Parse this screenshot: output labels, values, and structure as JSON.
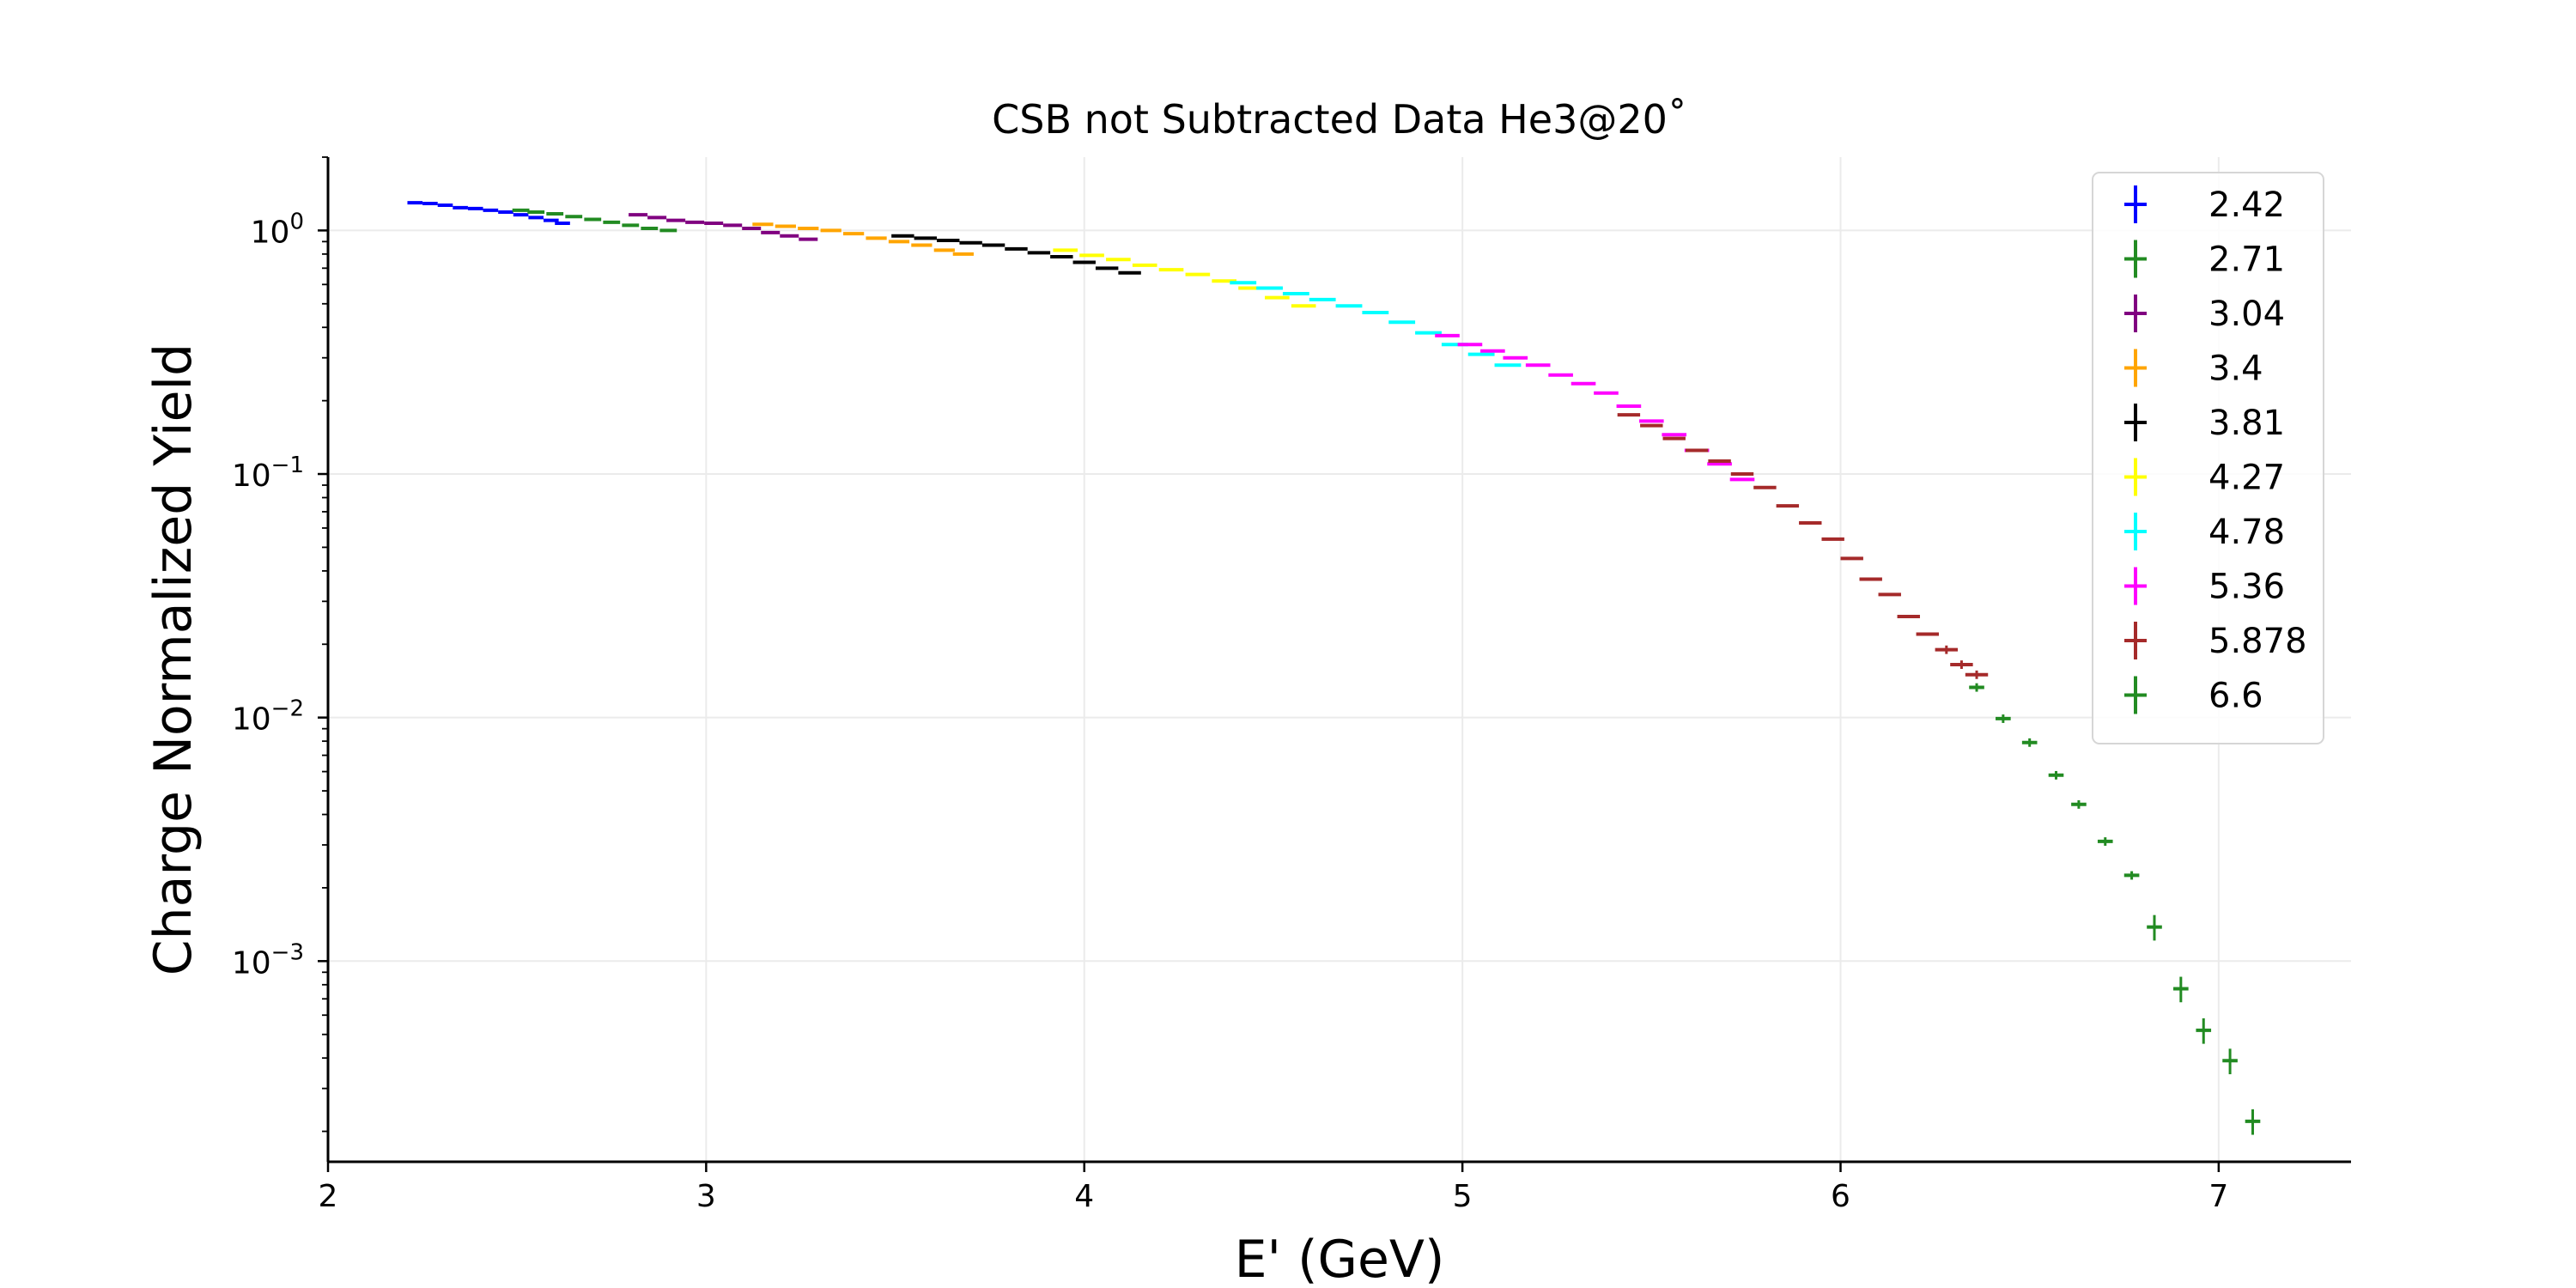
{
  "chart_data": {
    "type": "scatter",
    "title": "CSB not Subtracted Data He3@20˚",
    "xlabel": "E' (GeV)",
    "ylabel": "Charge Normalized Yield",
    "xlim": [
      2.0,
      7.35
    ],
    "ylim": [
      0.00015,
      2.0
    ],
    "yscale": "log",
    "grid": true,
    "legend_position": "top-right",
    "x_ticks": [
      {
        "value": 2,
        "label": "2"
      },
      {
        "value": 3,
        "label": "3"
      },
      {
        "value": 4,
        "label": "4"
      },
      {
        "value": 5,
        "label": "5"
      },
      {
        "value": 6,
        "label": "6"
      },
      {
        "value": 7,
        "label": "7"
      }
    ],
    "y_ticks": [
      {
        "value": 1.0,
        "label": "10",
        "exp": "0"
      },
      {
        "value": 0.1,
        "label": "10",
        "exp": "−1"
      },
      {
        "value": 0.01,
        "label": "10",
        "exp": "−2"
      },
      {
        "value": 0.001,
        "label": "10",
        "exp": "−3"
      }
    ],
    "series": [
      {
        "name": "2.42",
        "color": "#0000ff",
        "bin_width": 0.04,
        "points": [
          [
            2.23,
            1.3
          ],
          [
            2.27,
            1.29
          ],
          [
            2.31,
            1.27
          ],
          [
            2.35,
            1.24
          ],
          [
            2.39,
            1.23
          ],
          [
            2.43,
            1.21
          ],
          [
            2.47,
            1.19
          ],
          [
            2.51,
            1.16
          ],
          [
            2.55,
            1.13
          ],
          [
            2.59,
            1.1
          ],
          [
            2.62,
            1.07
          ]
        ]
      },
      {
        "name": "2.71",
        "color": "#228b22",
        "bin_width": 0.045,
        "points": [
          [
            2.51,
            1.21
          ],
          [
            2.55,
            1.19
          ],
          [
            2.6,
            1.17
          ],
          [
            2.65,
            1.14
          ],
          [
            2.7,
            1.11
          ],
          [
            2.75,
            1.08
          ],
          [
            2.8,
            1.05
          ],
          [
            2.85,
            1.02
          ],
          [
            2.9,
            1.0
          ]
        ]
      },
      {
        "name": "3.04",
        "color": "#800080",
        "bin_width": 0.05,
        "points": [
          [
            2.82,
            1.16
          ],
          [
            2.87,
            1.13
          ],
          [
            2.92,
            1.1
          ],
          [
            2.97,
            1.08
          ],
          [
            3.02,
            1.07
          ],
          [
            3.07,
            1.05
          ],
          [
            3.12,
            1.02
          ],
          [
            3.17,
            0.98
          ],
          [
            3.22,
            0.95
          ],
          [
            3.27,
            0.92
          ]
        ]
      },
      {
        "name": "3.4",
        "color": "#ffa500",
        "bin_width": 0.055,
        "points": [
          [
            3.15,
            1.06
          ],
          [
            3.21,
            1.04
          ],
          [
            3.27,
            1.02
          ],
          [
            3.33,
            1.0
          ],
          [
            3.39,
            0.97
          ],
          [
            3.45,
            0.93
          ],
          [
            3.51,
            0.9
          ],
          [
            3.57,
            0.87
          ],
          [
            3.63,
            0.83
          ],
          [
            3.68,
            0.8
          ]
        ]
      },
      {
        "name": "3.81",
        "color": "#000000",
        "bin_width": 0.06,
        "points": [
          [
            3.52,
            0.95
          ],
          [
            3.58,
            0.93
          ],
          [
            3.64,
            0.91
          ],
          [
            3.7,
            0.89
          ],
          [
            3.76,
            0.87
          ],
          [
            3.82,
            0.84
          ],
          [
            3.88,
            0.81
          ],
          [
            3.94,
            0.78
          ],
          [
            4.0,
            0.74
          ],
          [
            4.06,
            0.7
          ],
          [
            4.12,
            0.67
          ]
        ]
      },
      {
        "name": "4.27",
        "color": "#ffff00",
        "bin_width": 0.065,
        "points": [
          [
            3.95,
            0.83
          ],
          [
            4.02,
            0.79
          ],
          [
            4.09,
            0.76
          ],
          [
            4.16,
            0.72
          ],
          [
            4.23,
            0.69
          ],
          [
            4.3,
            0.66
          ],
          [
            4.37,
            0.62
          ],
          [
            4.44,
            0.58
          ],
          [
            4.51,
            0.53
          ],
          [
            4.58,
            0.49
          ]
        ]
      },
      {
        "name": "4.78",
        "color": "#00ffff",
        "bin_width": 0.07,
        "points": [
          [
            4.42,
            0.61
          ],
          [
            4.49,
            0.58
          ],
          [
            4.56,
            0.55
          ],
          [
            4.63,
            0.52
          ],
          [
            4.7,
            0.49
          ],
          [
            4.77,
            0.46
          ],
          [
            4.84,
            0.42
          ],
          [
            4.91,
            0.38
          ],
          [
            4.98,
            0.34
          ],
          [
            5.05,
            0.31
          ],
          [
            5.12,
            0.28
          ]
        ]
      },
      {
        "name": "5.36",
        "color": "#ff00ff",
        "bin_width": 0.065,
        "points": [
          [
            4.96,
            0.37
          ],
          [
            5.02,
            0.34
          ],
          [
            5.08,
            0.32
          ],
          [
            5.14,
            0.3
          ],
          [
            5.2,
            0.28
          ],
          [
            5.26,
            0.255
          ],
          [
            5.32,
            0.235
          ],
          [
            5.38,
            0.215
          ],
          [
            5.44,
            0.19
          ],
          [
            5.5,
            0.165
          ],
          [
            5.56,
            0.145
          ],
          [
            5.62,
            0.125
          ],
          [
            5.68,
            0.11
          ],
          [
            5.74,
            0.095
          ]
        ]
      },
      {
        "name": "5.878",
        "color": "#a52a2a",
        "bin_width": 0.06,
        "points": [
          [
            5.44,
            0.175
          ],
          [
            5.5,
            0.158
          ],
          [
            5.56,
            0.14
          ],
          [
            5.62,
            0.125
          ],
          [
            5.68,
            0.113
          ],
          [
            5.74,
            0.1
          ],
          [
            5.8,
            0.088
          ],
          [
            5.86,
            0.074
          ],
          [
            5.92,
            0.063
          ],
          [
            5.98,
            0.054
          ],
          [
            6.03,
            0.045
          ],
          [
            6.08,
            0.037
          ],
          [
            6.13,
            0.032
          ],
          [
            6.18,
            0.026
          ],
          [
            6.23,
            0.022
          ],
          [
            6.28,
            0.019
          ],
          [
            6.32,
            0.0165
          ],
          [
            6.36,
            0.015
          ]
        ]
      },
      {
        "name": "6.6",
        "color": "#228b22",
        "bin_width": 0.04,
        "points": [
          [
            6.36,
            0.0133
          ],
          [
            6.43,
            0.0099
          ],
          [
            6.5,
            0.0079
          ],
          [
            6.57,
            0.0058
          ],
          [
            6.63,
            0.0044
          ],
          [
            6.7,
            0.0031
          ],
          [
            6.77,
            0.00225
          ],
          [
            6.83,
            0.00138
          ],
          [
            6.9,
            0.00077
          ],
          [
            6.96,
            0.00052
          ],
          [
            7.03,
            0.00039
          ],
          [
            7.09,
            0.00022
          ]
        ]
      }
    ]
  }
}
